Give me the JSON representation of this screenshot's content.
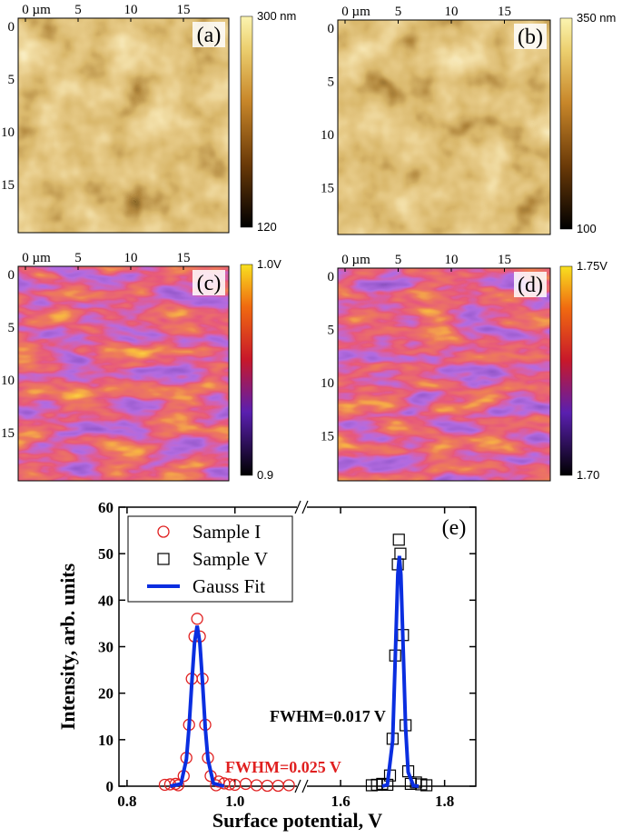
{
  "panels": [
    {
      "label": "(a)",
      "x_ticks": [
        "0 µm",
        "5",
        "10",
        "15"
      ],
      "y_ticks": [
        "0",
        "5",
        "10",
        "15"
      ],
      "scale_max": "300 nm",
      "scale_min": "120",
      "colormap": "height"
    },
    {
      "label": "(b)",
      "x_ticks": [
        "0 µm",
        "5",
        "10",
        "15"
      ],
      "y_ticks": [
        "0",
        "5",
        "10",
        "15"
      ],
      "scale_max": "350 nm",
      "scale_min": "100",
      "colormap": "height"
    },
    {
      "label": "(c)",
      "x_ticks": [
        "0 µm",
        "5",
        "10",
        "15"
      ],
      "y_ticks": [
        "0",
        "5",
        "10",
        "15"
      ],
      "scale_max": "1.0V",
      "scale_min": "0.9",
      "colormap": "potential"
    },
    {
      "label": "(d)",
      "x_ticks": [
        "0 µm",
        "5",
        "10",
        "15"
      ],
      "y_ticks": [
        "0",
        "5",
        "10",
        "15"
      ],
      "scale_max": "1.75V",
      "scale_min": "1.70",
      "colormap": "potential"
    }
  ],
  "chart_data": {
    "type": "scatter",
    "label": "(e)",
    "x_label": "Surface potential, V",
    "y_label": "Intensity, arb. units",
    "xlim_segments": [
      [
        0.785,
        1.12
      ],
      [
        1.53,
        1.86
      ]
    ],
    "ylim": [
      0,
      60
    ],
    "xticks": [
      0.8,
      {
        "value": 1.0,
        "label": "1.0"
      },
      1.6,
      1.8
    ],
    "yticks": [
      0,
      10,
      20,
      30,
      40,
      50,
      60
    ],
    "annotations": [
      {
        "text": "FWHM=0.017 V",
        "color": "#000000"
      },
      {
        "text": "FWHM=0.025 V",
        "color": "#e02020"
      }
    ],
    "series": [
      {
        "name": "Sample I",
        "color": "#e02020",
        "marker": "circle",
        "x": [
          0.87,
          0.88,
          0.89,
          0.895,
          0.905,
          0.91,
          0.915,
          0.92,
          0.925,
          0.93,
          0.935,
          0.94,
          0.945,
          0.95,
          0.955,
          0.965,
          0.97,
          0.98,
          0.99,
          1.0,
          1.02,
          1.04,
          1.06,
          1.08,
          1.1
        ],
        "values": [
          0.3,
          0.4,
          0.5,
          0.2,
          2.2,
          6.1,
          13.2,
          23.1,
          32.2,
          36,
          32.2,
          23.1,
          13.2,
          6.1,
          2.2,
          0.2,
          1.0,
          0.6,
          0.4,
          0.3,
          0.5,
          0.2,
          0.1,
          0.1,
          0.2
        ]
      },
      {
        "name": "Sample V",
        "color": "#000000",
        "marker": "square",
        "x": [
          1.66,
          1.67,
          1.68,
          1.69,
          1.695,
          1.7,
          1.705,
          1.71,
          1.712,
          1.715,
          1.72,
          1.725,
          1.73,
          1.735,
          1.745,
          1.755,
          1.765
        ],
        "values": [
          0.2,
          0.3,
          0.5,
          0.3,
          2.3,
          10.2,
          28.1,
          47.7,
          53,
          50,
          32.5,
          13.1,
          3.2,
          0.5,
          0.8,
          0.4,
          0.2
        ]
      },
      {
        "name": "Gauss Fit",
        "color": "#0a2ee0",
        "marker": "line",
        "x": [
          0.88,
          0.9,
          0.91,
          0.915,
          0.92,
          0.925,
          0.93,
          0.935,
          0.94,
          0.945,
          0.95,
          0.96,
          0.98,
          null,
          1.68,
          1.69,
          1.7,
          1.705,
          1.71,
          1.713,
          1.716,
          1.72,
          1.725,
          1.73,
          1.74,
          1.75
        ],
        "values": [
          0,
          0.5,
          5.8,
          12.7,
          22.1,
          30.8,
          34.5,
          30.8,
          22.1,
          12.7,
          5.8,
          0.6,
          0,
          null,
          0,
          0.3,
          9.7,
          27,
          45.5,
          49.5,
          45.5,
          31,
          12.5,
          3,
          0.1,
          0
        ]
      }
    ]
  }
}
